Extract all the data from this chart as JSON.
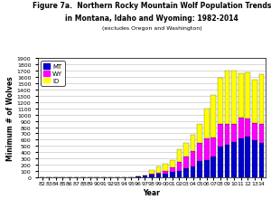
{
  "title_line1": "Figure 7a.  Northern Rocky Mountain Wolf Population Trends",
  "title_line2": "in Montana, Idaho and Wyoming: 1982-2014",
  "title_line3": "(excludes Oregon and Washington)",
  "xlabel": "Year",
  "ylabel": "Minimum # of Wolves",
  "ylim": [
    0,
    1900
  ],
  "yticks": [
    0,
    100,
    200,
    300,
    400,
    500,
    600,
    700,
    800,
    900,
    1000,
    1100,
    1200,
    1300,
    1400,
    1500,
    1600,
    1700,
    1800,
    1900
  ],
  "years": [
    "82",
    "83",
    "84",
    "85",
    "86",
    "87",
    "88",
    "89",
    "90",
    "91",
    "92",
    "93",
    "94",
    "95",
    "96",
    "97",
    "98",
    "99",
    "00",
    "01",
    "02",
    "03",
    "04",
    "05",
    "06",
    "07",
    "08",
    "09",
    "10",
    "11",
    "12",
    "13",
    "14"
  ],
  "MT": [
    0,
    0,
    0,
    0,
    0,
    0,
    0,
    0,
    0,
    0,
    0,
    0,
    5,
    9,
    22,
    30,
    53,
    57,
    61,
    88,
    106,
    147,
    182,
    256,
    280,
    334,
    497,
    524,
    566,
    625,
    653,
    591,
    554
  ],
  "WY": [
    0,
    0,
    0,
    0,
    0,
    0,
    0,
    0,
    0,
    0,
    0,
    0,
    0,
    0,
    0,
    0,
    14,
    19,
    47,
    76,
    136,
    181,
    233,
    299,
    336,
    300,
    357,
    320,
    288,
    328,
    277,
    277,
    294
  ],
  "ID": [
    0,
    0,
    0,
    0,
    0,
    0,
    0,
    0,
    0,
    0,
    0,
    0,
    0,
    0,
    0,
    0,
    47,
    99,
    114,
    119,
    204,
    223,
    262,
    299,
    480,
    673,
    732,
    856,
    848,
    705,
    746,
    683,
    786
  ],
  "MT_color": "#0000cc",
  "WY_color": "#ff00ff",
  "ID_color": "#ffff00",
  "background_color": "#ffffff",
  "bar_edge_color": "#000000",
  "title1_fontsize": 5.5,
  "title2_fontsize": 5.5,
  "title3_fontsize": 4.5,
  "axis_label_fontsize": 5.5,
  "tick_fontsize": 4.5,
  "legend_fontsize": 5.0
}
